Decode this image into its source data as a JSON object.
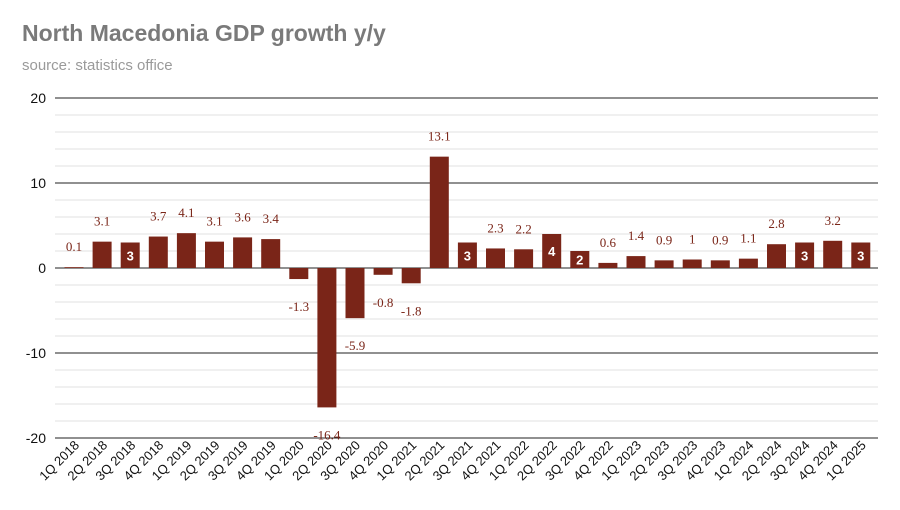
{
  "chart_data": {
    "type": "bar",
    "title": "North Macedonia GDP growth y/y",
    "subtitle": "source: statistics office",
    "xlabel": "",
    "ylabel": "",
    "ylim": [
      -20,
      20
    ],
    "yticks": [
      20,
      10,
      0,
      -10,
      -20
    ],
    "grid": true,
    "bar_color": "#7a2518",
    "categories": [
      "1Q 2018",
      "2Q 2018",
      "3Q 2018",
      "4Q 2018",
      "1Q 2019",
      "2Q 2019",
      "3Q 2019",
      "4Q 2019",
      "1Q 2020",
      "2Q 2020",
      "3Q 2020",
      "4Q 2020",
      "1Q 2021",
      "2Q 2021",
      "3Q 2021",
      "4Q 2021",
      "1Q 2022",
      "2Q 2022",
      "3Q 2022",
      "4Q 2022",
      "1Q 2023",
      "2Q 2023",
      "3Q 2023",
      "4Q 2023",
      "1Q 2024",
      "2Q 2024",
      "3Q 2024",
      "4Q 2024",
      "1Q 2025"
    ],
    "values": [
      0.1,
      3.1,
      3,
      3.7,
      4.1,
      3.1,
      3.6,
      3.4,
      -1.3,
      -16.4,
      -5.9,
      -0.8,
      -1.8,
      13.1,
      3,
      2.3,
      2.2,
      4,
      2,
      0.6,
      1.4,
      0.9,
      1,
      0.9,
      1.1,
      2.8,
      3,
      3.2,
      3
    ],
    "value_labels": [
      "0.1",
      "3.1",
      "3",
      "3.7",
      "4.1",
      "3.1",
      "3.6",
      "3.4",
      "-1.3",
      "-16.4",
      "-5.9",
      "-0.8",
      "-1.8",
      "13.1",
      "3",
      "2.3",
      "2.2",
      "4",
      "2",
      "0.6",
      "1.4",
      "0.9",
      "1",
      "0.9",
      "1.1",
      "2.8",
      "3",
      "3.2",
      "3"
    ],
    "label_inside": [
      false,
      false,
      true,
      false,
      false,
      false,
      false,
      false,
      false,
      false,
      false,
      false,
      false,
      false,
      true,
      false,
      false,
      true,
      true,
      false,
      false,
      false,
      false,
      false,
      false,
      false,
      true,
      false,
      true
    ]
  }
}
